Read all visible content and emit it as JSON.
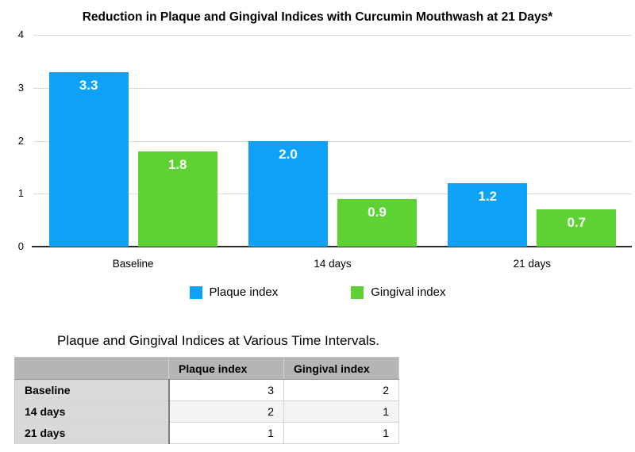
{
  "chart_data": {
    "type": "bar",
    "title": "Reduction in Plaque and Gingival Indices with Curcumin Mouthwash at 21 Days*",
    "categories": [
      "Baseline",
      "14 days",
      "21 days"
    ],
    "series": [
      {
        "name": "Plaque index",
        "color": "#0da2f7",
        "values": [
          3.3,
          2.0,
          1.2
        ]
      },
      {
        "name": "Gingival index",
        "color": "#5fd233",
        "values": [
          1.8,
          0.9,
          0.7
        ]
      }
    ],
    "xlabel": "",
    "ylabel": "",
    "ylim": [
      0,
      4
    ],
    "yticks": [
      0,
      1,
      2,
      3,
      4
    ],
    "grid": true,
    "legend_position": "bottom",
    "bar_value_labels": [
      "3.3",
      "2.0",
      "1.2",
      "1.8",
      "0.9",
      "0.7"
    ]
  },
  "table": {
    "title": "Plaque and Gingival Indices at Various Time Intervals.",
    "columns": [
      "",
      "Plaque index",
      "Gingival index"
    ],
    "rows": [
      {
        "label": "Baseline",
        "values": [
          "3",
          "2"
        ]
      },
      {
        "label": "14 days",
        "values": [
          "2",
          "1"
        ]
      },
      {
        "label": "21 days",
        "values": [
          "1",
          "1"
        ]
      }
    ]
  }
}
